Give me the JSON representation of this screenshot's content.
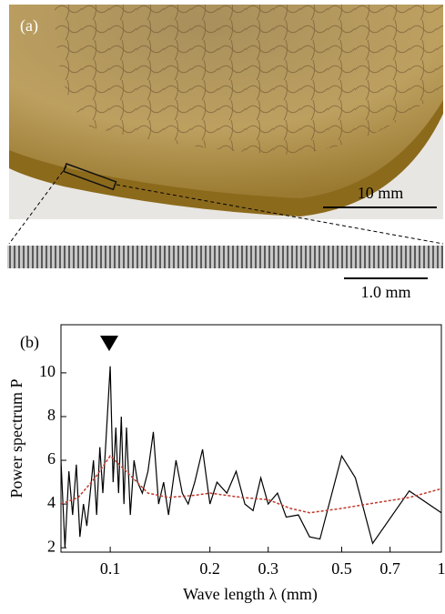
{
  "panel_a": {
    "label": "(a)",
    "scale_main": "10 mm",
    "scale_zoom": "1.0 mm"
  },
  "chart_data": {
    "type": "line",
    "label": "(b)",
    "x_label": "Wave length λ (mm)",
    "y_label": "Power spectrum P",
    "log_x": true,
    "xlim": [
      0.071,
      1
    ],
    "ylim": [
      1.8,
      12.2
    ],
    "xticks": [
      0.1,
      0.2,
      0.3,
      0.5,
      0.7,
      1
    ],
    "yticks": [
      2,
      4,
      6,
      8,
      10
    ],
    "series": [
      {
        "color": "#000000",
        "dashed": false,
        "x": [
          0.071,
          0.073,
          0.075,
          0.077,
          0.079,
          0.081,
          0.083,
          0.085,
          0.087,
          0.089,
          0.091,
          0.093,
          0.095,
          0.097,
          0.1,
          0.102,
          0.104,
          0.106,
          0.108,
          0.11,
          0.112,
          0.115,
          0.118,
          0.121,
          0.125,
          0.13,
          0.135,
          0.14,
          0.145,
          0.15,
          0.158,
          0.165,
          0.172,
          0.18,
          0.19,
          0.2,
          0.21,
          0.225,
          0.24,
          0.255,
          0.27,
          0.285,
          0.3,
          0.32,
          0.34,
          0.37,
          0.4,
          0.43,
          0.5,
          0.55,
          0.62,
          0.8,
          1
        ],
        "values": [
          6,
          2,
          5.5,
          3.5,
          5.8,
          2.5,
          4,
          3,
          4.5,
          6,
          3.5,
          6.6,
          4.5,
          6.8,
          10.3,
          5,
          7.5,
          4.5,
          8,
          4,
          7.5,
          3.5,
          6,
          5,
          4.5,
          5.5,
          7.3,
          4,
          5,
          3.5,
          6,
          4.5,
          4,
          5,
          6.5,
          4,
          5,
          4.5,
          5.5,
          4,
          3.7,
          5.2,
          4,
          4.5,
          3.4,
          3.5,
          2.5,
          2.4,
          6.2,
          5.2,
          2.2,
          4.6,
          3.6
        ]
      },
      {
        "color": "#c0392b",
        "dashed": true,
        "x": [
          0.071,
          0.08,
          0.09,
          0.1,
          0.11,
          0.13,
          0.15,
          0.18,
          0.2,
          0.25,
          0.3,
          0.35,
          0.4,
          0.5,
          0.6,
          0.8,
          1
        ],
        "values": [
          4.0,
          4.3,
          5.2,
          6.2,
          5.6,
          4.5,
          4.3,
          4.4,
          4.5,
          4.3,
          4.2,
          3.8,
          3.6,
          3.8,
          4.0,
          4.3,
          4.7
        ]
      }
    ]
  }
}
